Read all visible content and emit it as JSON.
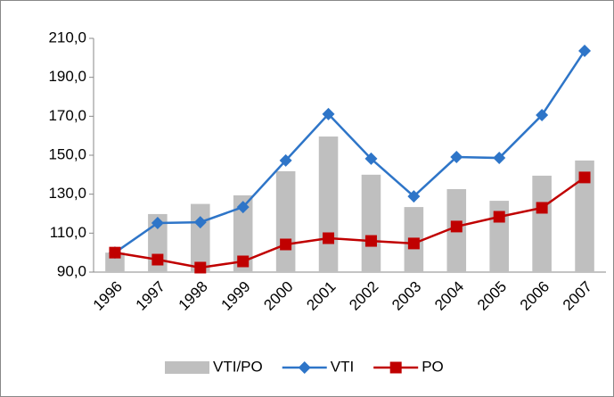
{
  "chart_data": {
    "type": "bar",
    "categories": [
      "1996",
      "1997",
      "1998",
      "1999",
      "2000",
      "2001",
      "2002",
      "2003",
      "2004",
      "2005",
      "2006",
      "2007"
    ],
    "series": [
      {
        "name": "VTI/PO",
        "type": "bar",
        "color": "#bfbfbf",
        "values": [
          100,
          119.8,
          125,
          129.4,
          141.8,
          159.6,
          140,
          123.4,
          132.6,
          126.6,
          139.5,
          147.3
        ]
      },
      {
        "name": "VTI",
        "type": "line",
        "marker": "diamond",
        "color": "#2e75c8",
        "values": [
          100,
          115.2,
          115.6,
          123.4,
          147.3,
          171.1,
          148.2,
          128.9,
          149.1,
          148.6,
          170.6,
          203.6
        ]
      },
      {
        "name": "PO",
        "type": "line",
        "marker": "square",
        "color": "#c00000",
        "values": [
          100,
          96.4,
          92.3,
          95.5,
          104.2,
          107.4,
          106,
          104.7,
          113.4,
          118.4,
          123,
          138.6
        ]
      }
    ],
    "ylim": [
      90,
      210
    ],
    "yticks": [
      {
        "value": 90,
        "label": "90,0"
      },
      {
        "value": 110,
        "label": "110,0"
      },
      {
        "value": 130,
        "label": "130,0"
      },
      {
        "value": 150,
        "label": "150,0"
      },
      {
        "value": 170,
        "label": "170,0"
      },
      {
        "value": 190,
        "label": "190,0"
      },
      {
        "value": 210,
        "label": "210,0"
      }
    ],
    "legend": "bottom"
  }
}
